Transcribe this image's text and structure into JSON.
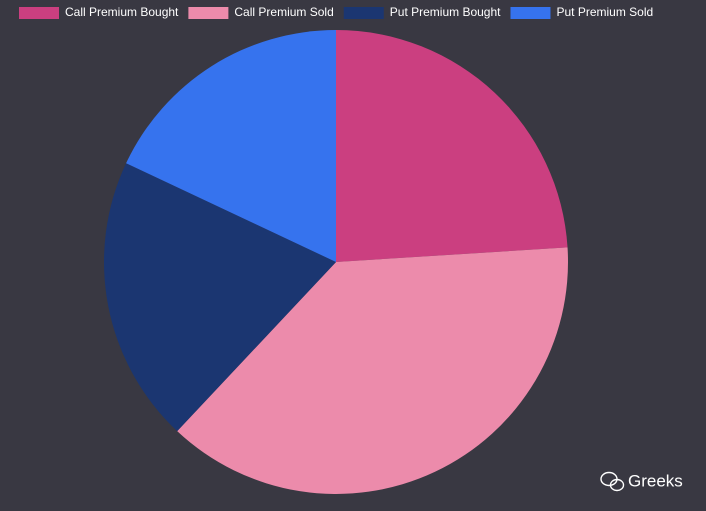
{
  "chart_data": {
    "type": "pie",
    "categories": [
      "Call Premium Bought",
      "Call Premium Sold",
      "Put Premium Bought",
      "Put Premium Sold"
    ],
    "values": [
      24,
      38,
      20,
      18
    ],
    "colors": [
      "#cb3f80",
      "#ec8bab",
      "#1b3671",
      "#3673ee"
    ],
    "legend": "top"
  },
  "watermark": "Greeks"
}
